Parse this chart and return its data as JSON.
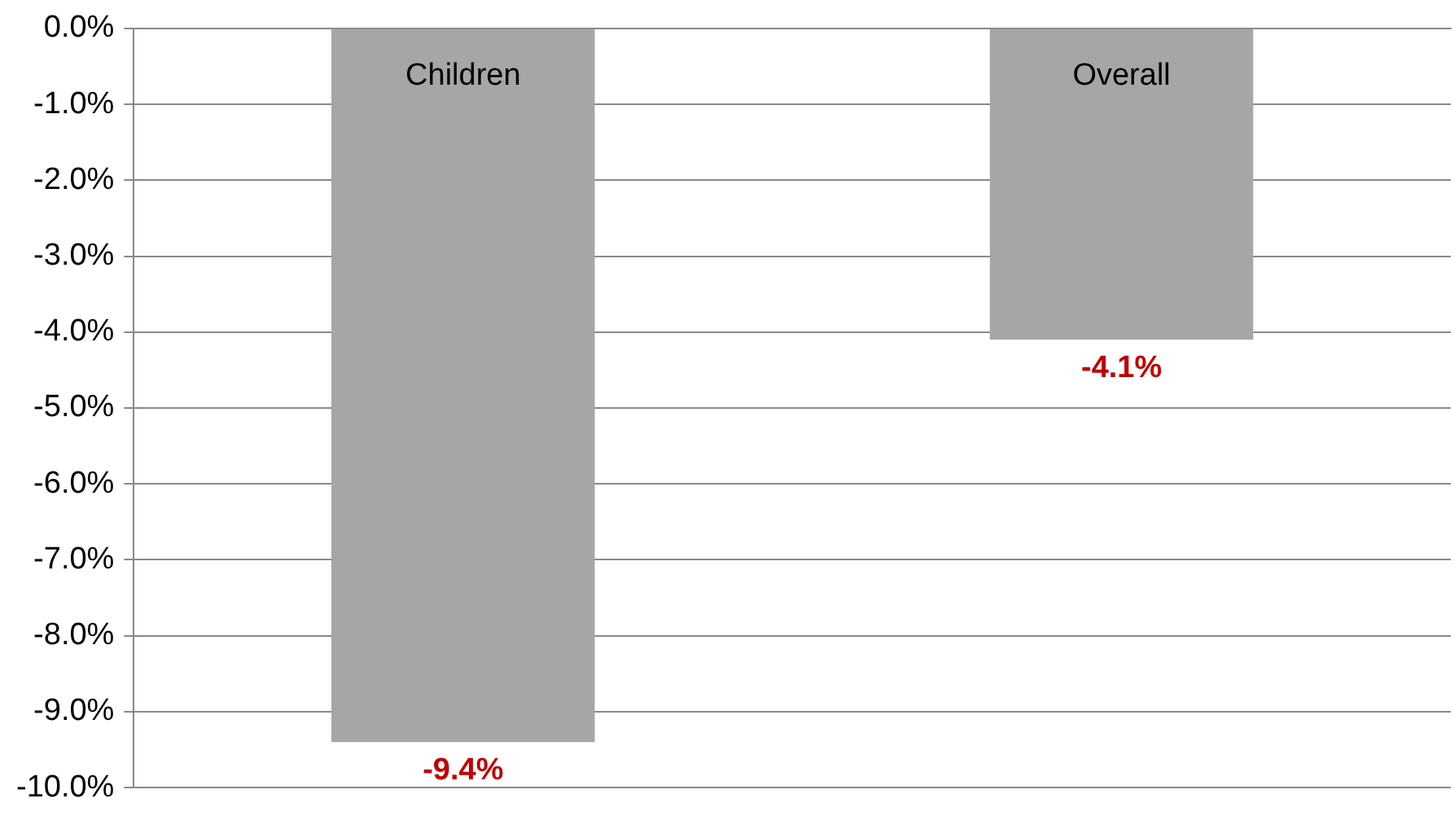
{
  "chart_data": {
    "type": "bar",
    "categories": [
      "Children",
      "Overall"
    ],
    "values": [
      -9.4,
      -4.1
    ],
    "color": "#a6a6a6",
    "value_labels": [
      "-9.4%",
      "-4.1%"
    ],
    "ylim": [
      -10,
      0
    ],
    "yticks": [
      {
        "value": 0,
        "label": "0.0%"
      },
      {
        "value": -1,
        "label": "-1.0%"
      },
      {
        "value": -2,
        "label": "-2.0%"
      },
      {
        "value": -3,
        "label": "-3.0%"
      },
      {
        "value": -4,
        "label": "-4.0%"
      },
      {
        "value": -5,
        "label": "-5.0%"
      },
      {
        "value": -6,
        "label": "-6.0%"
      },
      {
        "value": -7,
        "label": "-7.0%"
      },
      {
        "value": -8,
        "label": "-8.0%"
      },
      {
        "value": -9,
        "label": "-9.0%"
      },
      {
        "value": -10,
        "label": "-10.0%"
      }
    ],
    "grid": "y"
  }
}
